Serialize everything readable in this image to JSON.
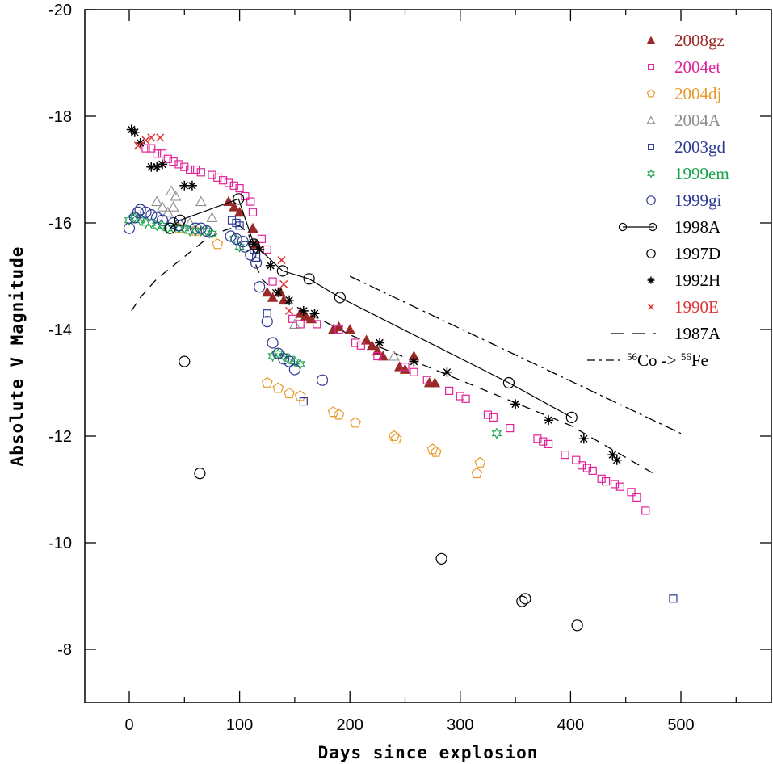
{
  "chart_data": {
    "type": "scatter",
    "xlabel": "Days since explosion",
    "ylabel": "Absolute V Magnitude",
    "xlim": [
      -40,
      580
    ],
    "ylim": [
      -7,
      -20
    ],
    "y_inverted": true,
    "x_ticks": [
      0,
      100,
      200,
      300,
      400,
      500
    ],
    "y_ticks": [
      -20,
      -18,
      -16,
      -14,
      -12,
      -10,
      -8
    ],
    "grid": false,
    "legend_position": "top-right",
    "series": [
      {
        "name": "2008gz",
        "marker": "filled-triangle",
        "color": "#9a2a28",
        "points": [
          [
            90,
            -16.4
          ],
          [
            95,
            -16.3
          ],
          [
            100,
            -16.2
          ],
          [
            112,
            -15.9
          ],
          [
            115,
            -15.6
          ],
          [
            125,
            -14.7
          ],
          [
            130,
            -14.6
          ],
          [
            137,
            -14.7
          ],
          [
            140,
            -14.55
          ],
          [
            155,
            -14.3
          ],
          [
            160,
            -14.25
          ],
          [
            165,
            -14.2
          ],
          [
            185,
            -14.0
          ],
          [
            190,
            -14.05
          ],
          [
            200,
            -14.0
          ],
          [
            215,
            -13.8
          ],
          [
            220,
            -13.7
          ],
          [
            225,
            -13.6
          ],
          [
            230,
            -13.5
          ],
          [
            245,
            -13.3
          ],
          [
            250,
            -13.25
          ],
          [
            258,
            -13.5
          ],
          [
            272,
            -13.0
          ],
          [
            277,
            -13.0
          ]
        ]
      },
      {
        "name": "2004et",
        "marker": "open-square",
        "color": "#e0239a",
        "points": [
          [
            15,
            -17.4
          ],
          [
            20,
            -17.4
          ],
          [
            25,
            -17.3
          ],
          [
            30,
            -17.3
          ],
          [
            35,
            -17.2
          ],
          [
            40,
            -17.15
          ],
          [
            45,
            -17.1
          ],
          [
            50,
            -17.05
          ],
          [
            55,
            -17.0
          ],
          [
            60,
            -17.0
          ],
          [
            65,
            -16.95
          ],
          [
            75,
            -16.9
          ],
          [
            80,
            -16.85
          ],
          [
            85,
            -16.8
          ],
          [
            90,
            -16.75
          ],
          [
            95,
            -16.7
          ],
          [
            100,
            -16.65
          ],
          [
            105,
            -16.5
          ],
          [
            110,
            -16.4
          ],
          [
            112,
            -16.2
          ],
          [
            120,
            -15.7
          ],
          [
            125,
            -15.5
          ],
          [
            130,
            -14.9
          ],
          [
            148,
            -14.2
          ],
          [
            155,
            -14.1
          ],
          [
            170,
            -14.1
          ],
          [
            190,
            -14.0
          ],
          [
            205,
            -13.75
          ],
          [
            210,
            -13.7
          ],
          [
            225,
            -13.5
          ],
          [
            250,
            -13.3
          ],
          [
            258,
            -13.2
          ],
          [
            270,
            -13.05
          ],
          [
            290,
            -12.85
          ],
          [
            300,
            -12.75
          ],
          [
            305,
            -12.7
          ],
          [
            325,
            -12.4
          ],
          [
            330,
            -12.35
          ],
          [
            345,
            -12.15
          ],
          [
            370,
            -11.95
          ],
          [
            375,
            -11.9
          ],
          [
            380,
            -11.85
          ],
          [
            395,
            -11.65
          ],
          [
            405,
            -11.55
          ],
          [
            410,
            -11.45
          ],
          [
            415,
            -11.4
          ],
          [
            420,
            -11.35
          ],
          [
            428,
            -11.2
          ],
          [
            432,
            -11.15
          ],
          [
            440,
            -11.1
          ],
          [
            445,
            -11.05
          ],
          [
            455,
            -10.95
          ],
          [
            460,
            -10.85
          ],
          [
            468,
            -10.6
          ]
        ]
      },
      {
        "name": "2004dj",
        "marker": "open-pentagon",
        "color": "#e79a2c",
        "points": [
          [
            45,
            -15.9
          ],
          [
            60,
            -15.85
          ],
          [
            80,
            -15.6
          ],
          [
            125,
            -13.0
          ],
          [
            135,
            -12.9
          ],
          [
            145,
            -12.8
          ],
          [
            155,
            -12.75
          ],
          [
            185,
            -12.45
          ],
          [
            190,
            -12.4
          ],
          [
            205,
            -12.25
          ],
          [
            240,
            -12.0
          ],
          [
            242,
            -11.95
          ],
          [
            275,
            -11.75
          ],
          [
            278,
            -11.7
          ],
          [
            315,
            -11.3
          ],
          [
            318,
            -11.5
          ]
        ]
      },
      {
        "name": "2004A",
        "marker": "open-triangle",
        "color": "#8e8e8e",
        "points": [
          [
            25,
            -16.4
          ],
          [
            30,
            -16.3
          ],
          [
            35,
            -16.2
          ],
          [
            40,
            -16.3
          ],
          [
            38,
            -16.6
          ],
          [
            42,
            -16.5
          ],
          [
            55,
            -16.0
          ],
          [
            65,
            -16.4
          ],
          [
            75,
            -16.1
          ],
          [
            150,
            -14.1
          ],
          [
            240,
            -13.5
          ]
        ]
      },
      {
        "name": "2003gd",
        "marker": "open-square",
        "color": "#2e3a93",
        "points": [
          [
            93,
            -16.05
          ],
          [
            97,
            -16.0
          ],
          [
            100,
            -15.95
          ],
          [
            113,
            -15.5
          ],
          [
            115,
            -15.35
          ],
          [
            125,
            -14.3
          ],
          [
            158,
            -12.65
          ],
          [
            493,
            -8.95
          ]
        ]
      },
      {
        "name": "1999em",
        "marker": "open-star",
        "color": "#17a34a",
        "points": [
          [
            0,
            -16.05
          ],
          [
            5,
            -16.1
          ],
          [
            10,
            -16.05
          ],
          [
            15,
            -16.0
          ],
          [
            20,
            -16.0
          ],
          [
            25,
            -15.95
          ],
          [
            30,
            -15.95
          ],
          [
            35,
            -15.9
          ],
          [
            40,
            -15.9
          ],
          [
            45,
            -15.9
          ],
          [
            50,
            -15.9
          ],
          [
            55,
            -15.85
          ],
          [
            60,
            -15.85
          ],
          [
            65,
            -15.85
          ],
          [
            70,
            -15.85
          ],
          [
            75,
            -15.8
          ],
          [
            95,
            -15.7
          ],
          [
            100,
            -15.55
          ],
          [
            130,
            -13.5
          ],
          [
            135,
            -13.55
          ],
          [
            140,
            -13.5
          ],
          [
            145,
            -13.45
          ],
          [
            150,
            -13.4
          ],
          [
            155,
            -13.35
          ],
          [
            333,
            -12.05
          ]
        ]
      },
      {
        "name": "1999gi",
        "marker": "open-circle",
        "color": "#2e3a93",
        "points": [
          [
            0,
            -15.9
          ],
          [
            5,
            -16.1
          ],
          [
            8,
            -16.2
          ],
          [
            10,
            -16.25
          ],
          [
            15,
            -16.2
          ],
          [
            20,
            -16.15
          ],
          [
            25,
            -16.1
          ],
          [
            30,
            -16.05
          ],
          [
            40,
            -16.0
          ],
          [
            45,
            -15.95
          ],
          [
            60,
            -15.9
          ],
          [
            65,
            -15.9
          ],
          [
            70,
            -15.85
          ],
          [
            92,
            -15.75
          ],
          [
            97,
            -15.7
          ],
          [
            103,
            -15.65
          ],
          [
            105,
            -15.55
          ],
          [
            110,
            -15.4
          ],
          [
            115,
            -15.25
          ],
          [
            118,
            -14.8
          ],
          [
            125,
            -14.15
          ],
          [
            130,
            -13.75
          ],
          [
            135,
            -13.55
          ],
          [
            140,
            -13.45
          ],
          [
            145,
            -13.4
          ],
          [
            150,
            -13.25
          ],
          [
            175,
            -13.05
          ]
        ]
      },
      {
        "name": "1998A",
        "marker": "open-circle-line",
        "color": "#000000",
        "points": [
          [
            37,
            -15.9
          ],
          [
            46,
            -16.05
          ],
          [
            99,
            -16.45
          ],
          [
            113,
            -15.6
          ],
          [
            139,
            -15.1
          ],
          [
            163,
            -14.95
          ],
          [
            191,
            -14.6
          ],
          [
            344,
            -13.0
          ],
          [
            401,
            -12.35
          ]
        ]
      },
      {
        "name": "1997D",
        "marker": "open-circle",
        "color": "#000000",
        "points": [
          [
            50,
            -13.4
          ],
          [
            64,
            -11.3
          ],
          [
            283,
            -9.7
          ],
          [
            356,
            -8.9
          ],
          [
            359,
            -8.95
          ],
          [
            406,
            -8.45
          ]
        ]
      },
      {
        "name": "1992H",
        "marker": "asterisk",
        "color": "#000000",
        "points": [
          [
            2,
            -17.75
          ],
          [
            5,
            -17.7
          ],
          [
            10,
            -17.5
          ],
          [
            20,
            -17.05
          ],
          [
            25,
            -17.05
          ],
          [
            30,
            -17.1
          ],
          [
            50,
            -16.7
          ],
          [
            57,
            -16.7
          ],
          [
            113,
            -15.6
          ],
          [
            118,
            -15.5
          ],
          [
            128,
            -15.2
          ],
          [
            135,
            -14.7
          ],
          [
            145,
            -14.55
          ],
          [
            158,
            -14.35
          ],
          [
            168,
            -14.3
          ],
          [
            227,
            -13.75
          ],
          [
            258,
            -13.4
          ],
          [
            288,
            -13.2
          ],
          [
            350,
            -12.6
          ],
          [
            380,
            -12.3
          ],
          [
            412,
            -11.95
          ],
          [
            438,
            -11.65
          ],
          [
            442,
            -11.55
          ]
        ]
      },
      {
        "name": "1990E",
        "marker": "x",
        "color": "#e03333",
        "points": [
          [
            8,
            -17.45
          ],
          [
            15,
            -17.55
          ],
          [
            20,
            -17.6
          ],
          [
            28,
            -17.6
          ],
          [
            138,
            -15.3
          ],
          [
            140,
            -14.85
          ],
          [
            145,
            -14.35
          ]
        ]
      }
    ],
    "reference_lines": [
      {
        "name": "1987A",
        "style": "dashed",
        "points": [
          [
            2,
            -14.35
          ],
          [
            10,
            -14.6
          ],
          [
            25,
            -14.95
          ],
          [
            40,
            -15.2
          ],
          [
            55,
            -15.45
          ],
          [
            70,
            -15.7
          ],
          [
            85,
            -15.85
          ],
          [
            100,
            -15.95
          ],
          [
            108,
            -15.8
          ],
          [
            112,
            -15.5
          ],
          [
            115,
            -15.2
          ],
          [
            120,
            -14.95
          ],
          [
            140,
            -14.55
          ],
          [
            200,
            -13.9
          ],
          [
            300,
            -13.05
          ],
          [
            400,
            -12.2
          ],
          [
            475,
            -11.3
          ]
        ]
      },
      {
        "name": "56Co -> 56Fe",
        "style": "dash-dot",
        "points": [
          [
            200,
            -15.0
          ],
          [
            500,
            -12.05
          ]
        ]
      }
    ]
  }
}
